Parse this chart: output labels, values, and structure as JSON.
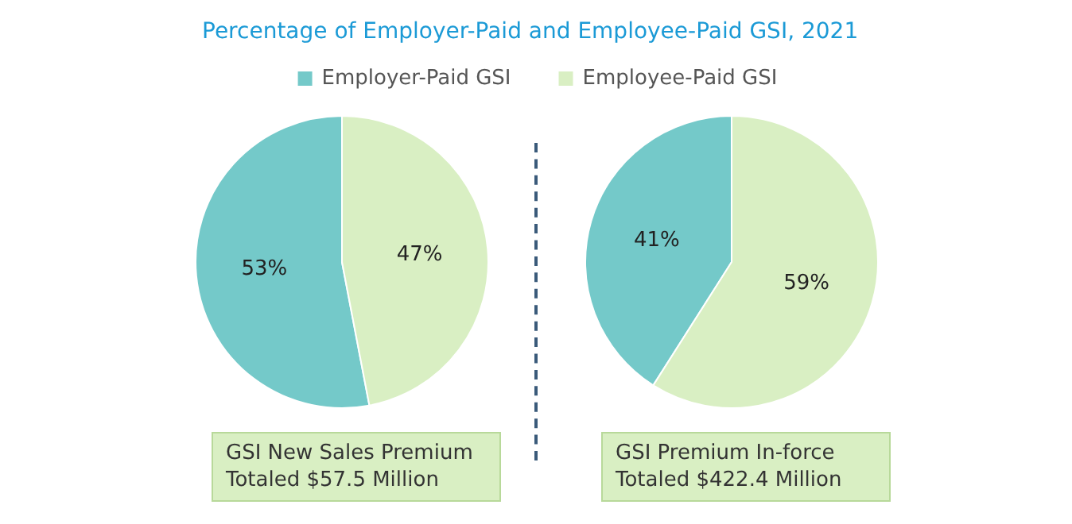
{
  "chart_data": [
    {
      "type": "pie",
      "title": "Percentage of Employer-Paid and Employee-Paid GSI, 2021",
      "categories": [
        "Employer-Paid GSI",
        "Employee-Paid GSI"
      ],
      "values": [
        53,
        47
      ],
      "colors": [
        "#74c9c9",
        "#d9efc3"
      ],
      "value_labels": [
        "53%",
        "47%"
      ],
      "legend": "top",
      "annotations": [
        "GSI New Sales Premium\nTotaled $57.5 Million"
      ]
    },
    {
      "type": "pie",
      "categories": [
        null,
        null
      ],
      "values": [
        41,
        59
      ],
      "colors": [
        "#74c9c9",
        "#d9efc3"
      ],
      "value_labels": [
        "41%",
        "59%"
      ],
      "annotations": [
        "GSI Premium In-force\nTotaled $422.4 Million"
      ]
    }
  ]
}
